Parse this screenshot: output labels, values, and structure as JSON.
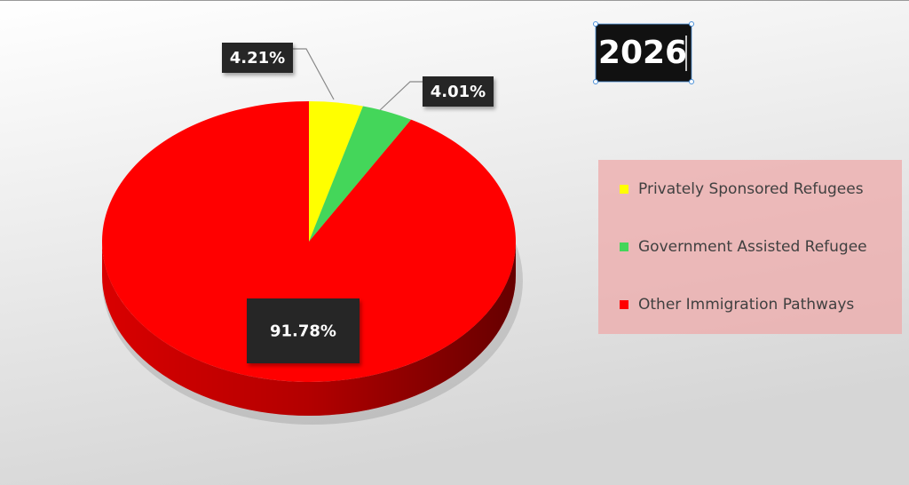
{
  "chart_data": {
    "type": "pie",
    "title": "2026",
    "categories": [
      "Privately Sponsored Refugees",
      "Government Assisted Refugee",
      "Other Immigration Pathways"
    ],
    "values": [
      4.21,
      4.01,
      91.78
    ],
    "value_labels": [
      "4.21%",
      "4.01%",
      "91.78%"
    ],
    "colors": [
      "#ffff00",
      "#44d65a",
      "#ff0000"
    ],
    "legend": "right"
  }
}
